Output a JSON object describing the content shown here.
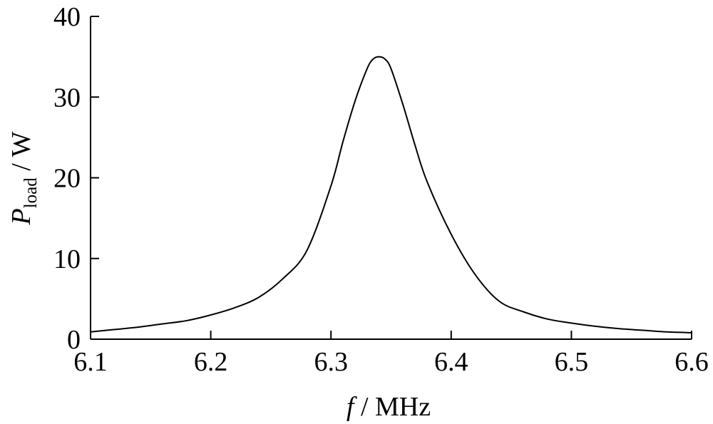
{
  "chart_data": {
    "type": "line",
    "title": "",
    "xlabel": {
      "symbol": "f",
      "unit": " / MHz"
    },
    "ylabel": {
      "symbol": "P",
      "subscript": "load",
      "unit": " / W"
    },
    "xlim": [
      6.1,
      6.6
    ],
    "ylim": [
      0,
      40
    ],
    "x_ticks": [
      "6.1",
      "6.2",
      "6.3",
      "6.4",
      "6.5",
      "6.6"
    ],
    "y_ticks": [
      "0",
      "10",
      "20",
      "30",
      "40"
    ],
    "grid": false,
    "legend": "none",
    "line_color": "#000000",
    "series": [
      {
        "x": [
          6.1,
          6.12,
          6.14,
          6.16,
          6.18,
          6.2,
          6.22,
          6.24,
          6.26,
          6.28,
          6.3,
          6.31,
          6.32,
          6.33,
          6.335,
          6.34,
          6.345,
          6.35,
          6.36,
          6.37,
          6.38,
          6.4,
          6.42,
          6.44,
          6.46,
          6.48,
          6.5,
          6.52,
          6.54,
          6.56,
          6.58,
          6.6
        ],
        "y": [
          0.9,
          1.2,
          1.5,
          1.9,
          2.3,
          3.0,
          3.9,
          5.2,
          7.5,
          11.0,
          19.0,
          24.5,
          29.5,
          33.5,
          34.7,
          35.0,
          34.7,
          33.5,
          29.0,
          24.0,
          19.5,
          13.0,
          8.0,
          4.7,
          3.4,
          2.5,
          2.0,
          1.6,
          1.3,
          1.1,
          0.9,
          0.8
        ]
      }
    ]
  }
}
